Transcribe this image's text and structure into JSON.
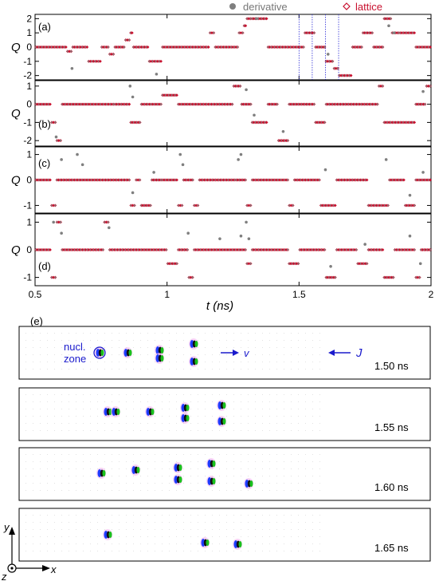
{
  "legend": {
    "derivative_label": "derivative",
    "lattice_label": "lattice",
    "derivative_color": "#7f7f7f",
    "lattice_color": "#c8102e"
  },
  "chart_data": {
    "type": "scatter",
    "x_axis": {
      "label": "t (ns)",
      "range": [
        0.5,
        2.0
      ],
      "ticks": [
        0.5,
        1,
        1.5,
        2
      ],
      "tick_labels": [
        "0.5",
        "1",
        "1.5",
        "2"
      ]
    },
    "y_label": "Q",
    "panels": [
      {
        "label": "(a)",
        "ylim": [
          -2.3,
          2.3
        ],
        "yticks": [
          -2,
          -1,
          0,
          1,
          2
        ],
        "vlines": [
          1.5,
          1.55,
          1.6,
          1.65
        ],
        "segments": [
          [
            0.5,
            0.62,
            0
          ],
          [
            0.62,
            0.64,
            -0.3
          ],
          [
            0.64,
            0.7,
            0
          ],
          [
            0.7,
            0.75,
            -1
          ],
          [
            0.75,
            0.78,
            0
          ],
          [
            0.78,
            0.8,
            -0.5
          ],
          [
            0.8,
            0.84,
            0
          ],
          [
            0.84,
            0.86,
            0.5
          ],
          [
            0.86,
            0.87,
            1
          ],
          [
            0.87,
            0.93,
            0
          ],
          [
            0.93,
            0.98,
            -1
          ],
          [
            0.98,
            1.16,
            0
          ],
          [
            1.16,
            1.18,
            1
          ],
          [
            1.18,
            1.27,
            0
          ],
          [
            1.27,
            1.29,
            1
          ],
          [
            1.29,
            1.3,
            1.5
          ],
          [
            1.3,
            1.32,
            2
          ],
          [
            1.32,
            1.38,
            2
          ],
          [
            1.38,
            1.52,
            0
          ],
          [
            1.52,
            1.56,
            1
          ],
          [
            1.56,
            1.6,
            0
          ],
          [
            1.6,
            1.63,
            -1
          ],
          [
            1.63,
            1.65,
            -1.5
          ],
          [
            1.65,
            1.7,
            -2
          ],
          [
            1.7,
            1.74,
            0
          ],
          [
            1.74,
            1.78,
            1
          ],
          [
            1.78,
            1.82,
            0
          ],
          [
            1.82,
            1.85,
            2
          ],
          [
            1.85,
            1.88,
            1
          ],
          [
            1.88,
            1.94,
            1
          ],
          [
            1.94,
            2.0,
            0
          ]
        ],
        "scatter": [
          [
            0.64,
            -1.5
          ],
          [
            0.96,
            -1.9
          ],
          [
            1.34,
            2
          ],
          [
            1.61,
            -0.5
          ],
          [
            1.84,
            1.5
          ],
          [
            1.86,
            1
          ]
        ]
      },
      {
        "label": "(b)",
        "ylim": [
          -2.3,
          1.3
        ],
        "yticks": [
          -2,
          -1,
          0,
          1
        ],
        "segments": [
          [
            0.5,
            0.56,
            0
          ],
          [
            0.56,
            0.58,
            -1
          ],
          [
            0.58,
            0.6,
            -2
          ],
          [
            0.6,
            0.72,
            0
          ],
          [
            0.72,
            0.8,
            0
          ],
          [
            0.8,
            0.86,
            0
          ],
          [
            0.86,
            0.9,
            -1
          ],
          [
            0.9,
            0.98,
            0
          ],
          [
            0.98,
            1.04,
            0.5
          ],
          [
            1.04,
            1.25,
            0
          ],
          [
            1.25,
            1.28,
            1
          ],
          [
            1.28,
            1.32,
            0
          ],
          [
            1.32,
            1.38,
            -1
          ],
          [
            1.38,
            1.42,
            0
          ],
          [
            1.42,
            1.46,
            -2
          ],
          [
            1.46,
            1.56,
            0
          ],
          [
            1.56,
            1.6,
            -1
          ],
          [
            1.6,
            1.8,
            0
          ],
          [
            1.8,
            1.82,
            1
          ],
          [
            1.82,
            1.88,
            -1
          ],
          [
            1.88,
            1.94,
            -1
          ],
          [
            1.94,
            1.98,
            0
          ],
          [
            1.98,
            2.0,
            1
          ]
        ],
        "scatter": [
          [
            0.58,
            -1.8
          ],
          [
            0.86,
            1
          ],
          [
            0.87,
            0.4
          ],
          [
            1.3,
            0.8
          ],
          [
            1.33,
            -0.6
          ],
          [
            1.44,
            -1.5
          ],
          [
            1.97,
            0.7
          ]
        ]
      },
      {
        "label": "(c)",
        "ylim": [
          -1.3,
          1.3
        ],
        "yticks": [
          -1,
          0,
          1
        ],
        "segments": [
          [
            0.5,
            0.56,
            0
          ],
          [
            0.56,
            0.58,
            -1
          ],
          [
            0.58,
            0.86,
            0
          ],
          [
            0.86,
            0.88,
            -1
          ],
          [
            0.88,
            0.9,
            0
          ],
          [
            0.9,
            0.94,
            -1
          ],
          [
            0.94,
            0.98,
            0
          ],
          [
            0.98,
            1.04,
            0
          ],
          [
            1.04,
            1.06,
            -1
          ],
          [
            1.06,
            1.1,
            0
          ],
          [
            1.1,
            1.12,
            -1
          ],
          [
            1.12,
            1.26,
            0
          ],
          [
            1.26,
            1.3,
            0
          ],
          [
            1.3,
            1.32,
            -1
          ],
          [
            1.32,
            1.46,
            0
          ],
          [
            1.46,
            1.48,
            -1
          ],
          [
            1.48,
            1.58,
            0
          ],
          [
            1.58,
            1.64,
            -1
          ],
          [
            1.64,
            1.76,
            0
          ],
          [
            1.76,
            1.84,
            -1
          ],
          [
            1.84,
            1.9,
            0
          ],
          [
            1.9,
            1.94,
            -1
          ],
          [
            1.94,
            2.0,
            0
          ]
        ],
        "scatter": [
          [
            0.6,
            0.8
          ],
          [
            0.66,
            1
          ],
          [
            0.68,
            0.6
          ],
          [
            0.87,
            -0.5
          ],
          [
            0.95,
            0.3
          ],
          [
            1.05,
            1
          ],
          [
            1.06,
            0.6
          ],
          [
            1.27,
            0.8
          ],
          [
            1.28,
            1
          ],
          [
            1.6,
            0.4
          ],
          [
            1.83,
            0.8
          ],
          [
            1.92,
            -0.6
          ],
          [
            1.97,
            0.3
          ]
        ]
      },
      {
        "label": "(d)",
        "ylim": [
          -1.3,
          1.3
        ],
        "yticks": [
          -1,
          0,
          1
        ],
        "segments": [
          [
            0.5,
            0.56,
            0
          ],
          [
            0.56,
            0.58,
            -1
          ],
          [
            0.58,
            0.6,
            1
          ],
          [
            0.6,
            0.76,
            0
          ],
          [
            0.76,
            0.78,
            1
          ],
          [
            0.78,
            1.0,
            0
          ],
          [
            1.0,
            1.04,
            -0.5
          ],
          [
            1.04,
            1.08,
            0
          ],
          [
            1.08,
            1.1,
            -1
          ],
          [
            1.1,
            1.3,
            0
          ],
          [
            1.3,
            1.32,
            -0.5
          ],
          [
            1.32,
            1.46,
            0
          ],
          [
            1.46,
            1.5,
            -0.5
          ],
          [
            1.5,
            1.6,
            0
          ],
          [
            1.6,
            1.64,
            -1
          ],
          [
            1.64,
            1.72,
            0
          ],
          [
            1.72,
            1.76,
            -0.5
          ],
          [
            1.76,
            1.82,
            0
          ],
          [
            1.82,
            1.86,
            -1
          ],
          [
            1.86,
            1.94,
            0
          ],
          [
            1.94,
            1.96,
            -1
          ],
          [
            1.96,
            2.0,
            0
          ]
        ],
        "scatter": [
          [
            0.57,
            1
          ],
          [
            0.6,
            0.6
          ],
          [
            0.78,
            0.8
          ],
          [
            1.08,
            0.6
          ],
          [
            1.2,
            0.4
          ],
          [
            1.28,
            0.5
          ],
          [
            1.3,
            1
          ],
          [
            1.31,
            0.4
          ],
          [
            1.62,
            -0.6
          ],
          [
            1.75,
            0.2
          ],
          [
            1.92,
            0.5
          ],
          [
            1.96,
            -0.5
          ]
        ]
      }
    ]
  },
  "panel_e": {
    "label": "(e)",
    "nucl_label_1": "nucl.",
    "nucl_label_2": "zone",
    "v_label": "v",
    "j_label": "J",
    "accent": "#1a1acc",
    "frames": [
      {
        "time": "1.50 ns"
      },
      {
        "time": "1.55 ns"
      },
      {
        "time": "1.60 ns"
      },
      {
        "time": "1.65 ns"
      }
    ],
    "axes": {
      "y": "y",
      "x": "x",
      "z": "z"
    }
  }
}
